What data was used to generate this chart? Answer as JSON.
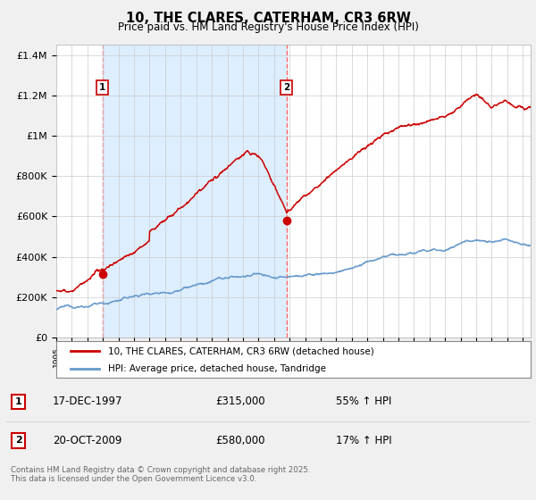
{
  "title": "10, THE CLARES, CATERHAM, CR3 6RW",
  "subtitle": "Price paid vs. HM Land Registry's House Price Index (HPI)",
  "ylabel_ticks": [
    "£0",
    "£200K",
    "£400K",
    "£600K",
    "£800K",
    "£1M",
    "£1.2M",
    "£1.4M"
  ],
  "ylabel_values": [
    0,
    200000,
    400000,
    600000,
    800000,
    1000000,
    1200000,
    1400000
  ],
  "ylim": [
    0,
    1450000
  ],
  "xlim": [
    1995,
    2025.5
  ],
  "sale1": {
    "date_num": 1997.96,
    "price": 315000,
    "label": "1",
    "pct": "55%",
    "date_str": "17-DEC-1997"
  },
  "sale2": {
    "date_num": 2009.8,
    "price": 580000,
    "label": "2",
    "pct": "17%",
    "date_str": "20-OCT-2009"
  },
  "legend_line1": "10, THE CLARES, CATERHAM, CR3 6RW (detached house)",
  "legend_line2": "HPI: Average price, detached house, Tandridge",
  "footnote": "Contains HM Land Registry data © Crown copyright and database right 2025.\nThis data is licensed under the Open Government Licence v3.0.",
  "line_color_house": "#cc0000",
  "line_color_hpi": "#6699cc",
  "dashed_color": "#ff6666",
  "shade_color": "#ddeeff",
  "background_color": "#f0f0f0",
  "plot_bg": "#ffffff"
}
